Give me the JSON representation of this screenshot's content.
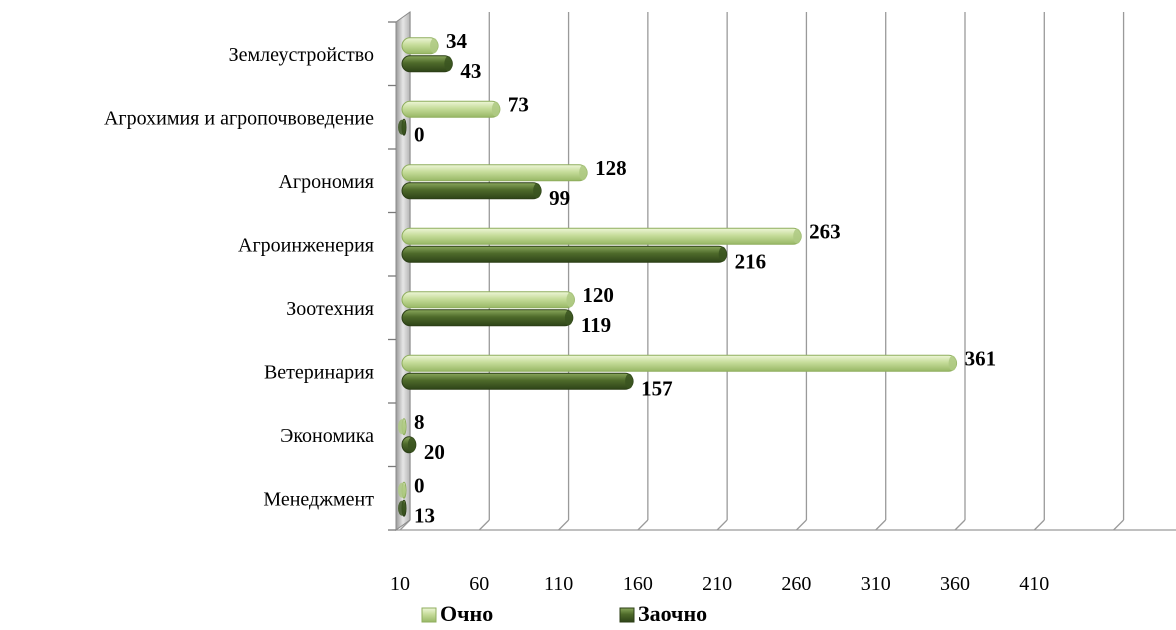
{
  "chart_data": {
    "type": "bar",
    "orientation": "horizontal",
    "categories": [
      "Землеустройство",
      "Агрохимия и агропочвоведение",
      "Агрономия",
      "Агроинженерия",
      "Зоотехния",
      "Ветеринария",
      "Экономика",
      "Менеджмент"
    ],
    "series": [
      {
        "name": "Очно",
        "values": [
          34,
          73,
          128,
          263,
          120,
          361,
          8,
          0
        ],
        "color": "#c6dc9a"
      },
      {
        "name": "Заочно",
        "values": [
          43,
          0,
          99,
          216,
          119,
          157,
          20,
          13
        ],
        "color": "#4e6a2a"
      }
    ],
    "data_labels": [
      [
        "34",
        "73",
        "128",
        "263",
        "120",
        "361",
        "8",
        "0"
      ],
      [
        "43",
        "0",
        "99",
        "216",
        "119",
        "157",
        "20",
        "13"
      ]
    ],
    "xlim": [
      10,
      460
    ],
    "xticks": [
      10,
      60,
      110,
      160,
      210,
      260,
      310,
      360,
      410
    ],
    "xtick_labels": [
      "10",
      "60",
      "110",
      "160",
      "210",
      "260",
      "310",
      "360",
      "410"
    ],
    "grid": true,
    "legend": "bottom",
    "style": "3d"
  }
}
